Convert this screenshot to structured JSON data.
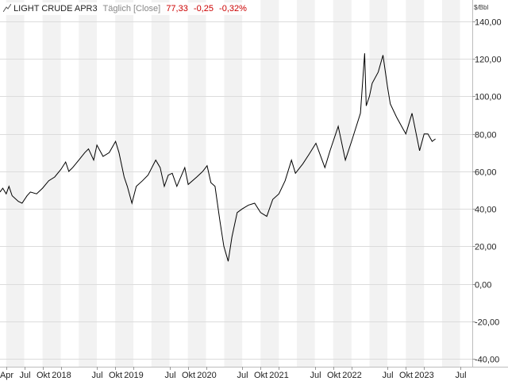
{
  "header": {
    "symbol": "LIGHT CRUDE APR3",
    "frequency": "Täglich [Close]",
    "last": "77,33",
    "change": "-0,25",
    "change_pct": "-0,32%",
    "icon": "line-chart-icon",
    "change_color": "#cc0000"
  },
  "chart_data": {
    "type": "line",
    "title": "LIGHT CRUDE APR3",
    "unit_label": "$/Bbl",
    "ylim": [
      -40,
      140
    ],
    "xlim": [
      "2017-03-01",
      "2023-08-31"
    ],
    "y_tick_labels": [
      "140,00",
      "120,00",
      "100,00",
      "80,00",
      "60,00",
      "40,00",
      "20,00",
      "0,00",
      "-20,00",
      "-40,00"
    ],
    "y_tick_values": [
      140,
      120,
      100,
      80,
      60,
      40,
      20,
      0,
      -20,
      -40
    ],
    "x_tick_labels": [
      "Apr",
      "Jul",
      "Okt",
      "2018",
      "Jul",
      "Okt",
      "2019",
      "Jul",
      "Okt",
      "2020",
      "Jul",
      "Okt",
      "2021",
      "Jul",
      "Okt",
      "2022",
      "Jul",
      "Okt",
      "2023",
      "Jul"
    ],
    "x_tick_dates": [
      "2017-04-01",
      "2017-07-01",
      "2017-10-01",
      "2018-01-01",
      "2018-07-01",
      "2018-10-01",
      "2019-01-01",
      "2019-07-01",
      "2019-10-01",
      "2020-01-01",
      "2020-07-01",
      "2020-10-01",
      "2021-01-01",
      "2021-07-01",
      "2021-10-01",
      "2022-01-01",
      "2022-07-01",
      "2022-10-01",
      "2023-01-01",
      "2023-07-01"
    ],
    "grid": true,
    "legend": "none",
    "line_color": "#000000",
    "series": [
      {
        "points": [
          [
            "2017-03-01",
            49
          ],
          [
            "2017-03-15",
            51
          ],
          [
            "2017-04-01",
            48
          ],
          [
            "2017-04-15",
            52
          ],
          [
            "2017-05-01",
            47
          ],
          [
            "2017-06-01",
            44
          ],
          [
            "2017-06-20",
            43
          ],
          [
            "2017-07-15",
            47
          ],
          [
            "2017-08-01",
            49
          ],
          [
            "2017-09-01",
            48
          ],
          [
            "2017-10-01",
            51
          ],
          [
            "2017-11-01",
            55
          ],
          [
            "2017-12-01",
            57
          ],
          [
            "2018-01-01",
            61
          ],
          [
            "2018-01-25",
            65
          ],
          [
            "2018-02-10",
            60
          ],
          [
            "2018-03-01",
            62
          ],
          [
            "2018-04-01",
            66
          ],
          [
            "2018-05-01",
            70
          ],
          [
            "2018-05-20",
            72
          ],
          [
            "2018-06-15",
            66
          ],
          [
            "2018-07-01",
            74
          ],
          [
            "2018-08-01",
            68
          ],
          [
            "2018-09-01",
            70
          ],
          [
            "2018-10-03",
            76
          ],
          [
            "2018-10-20",
            70
          ],
          [
            "2018-11-15",
            57
          ],
          [
            "2018-12-01",
            52
          ],
          [
            "2018-12-24",
            43
          ],
          [
            "2019-01-15",
            52
          ],
          [
            "2019-02-15",
            55
          ],
          [
            "2019-03-15",
            58
          ],
          [
            "2019-04-23",
            66
          ],
          [
            "2019-05-15",
            62
          ],
          [
            "2019-06-05",
            52
          ],
          [
            "2019-06-25",
            58
          ],
          [
            "2019-07-15",
            59
          ],
          [
            "2019-08-07",
            52
          ],
          [
            "2019-09-16",
            62
          ],
          [
            "2019-10-03",
            53
          ],
          [
            "2019-11-15",
            57
          ],
          [
            "2019-12-15",
            60
          ],
          [
            "2020-01-06",
            63
          ],
          [
            "2020-01-25",
            54
          ],
          [
            "2020-02-15",
            52
          ],
          [
            "2020-03-10",
            34
          ],
          [
            "2020-03-30",
            20
          ],
          [
            "2020-04-21",
            12
          ],
          [
            "2020-05-10",
            25
          ],
          [
            "2020-06-05",
            38
          ],
          [
            "2020-07-01",
            40
          ],
          [
            "2020-08-01",
            42
          ],
          [
            "2020-09-01",
            43
          ],
          [
            "2020-10-01",
            38
          ],
          [
            "2020-11-01",
            36
          ],
          [
            "2020-12-01",
            45
          ],
          [
            "2021-01-01",
            48
          ],
          [
            "2021-02-01",
            55
          ],
          [
            "2021-03-05",
            66
          ],
          [
            "2021-03-25",
            59
          ],
          [
            "2021-05-01",
            64
          ],
          [
            "2021-06-01",
            69
          ],
          [
            "2021-07-06",
            75
          ],
          [
            "2021-08-20",
            62
          ],
          [
            "2021-09-15",
            71
          ],
          [
            "2021-10-26",
            84
          ],
          [
            "2021-12-01",
            66
          ],
          [
            "2022-01-01",
            76
          ],
          [
            "2022-02-15",
            91
          ],
          [
            "2022-03-08",
            123
          ],
          [
            "2022-03-16",
            95
          ],
          [
            "2022-04-01",
            100
          ],
          [
            "2022-04-15",
            107
          ],
          [
            "2022-05-15",
            113
          ],
          [
            "2022-06-08",
            122
          ],
          [
            "2022-07-01",
            105
          ],
          [
            "2022-07-15",
            96
          ],
          [
            "2022-08-15",
            89
          ],
          [
            "2022-09-15",
            83
          ],
          [
            "2022-10-01",
            80
          ],
          [
            "2022-11-01",
            91
          ],
          [
            "2022-12-09",
            71
          ],
          [
            "2023-01-01",
            80
          ],
          [
            "2023-01-20",
            80
          ],
          [
            "2023-02-10",
            76
          ],
          [
            "2023-02-27",
            77.33
          ]
        ]
      }
    ]
  }
}
